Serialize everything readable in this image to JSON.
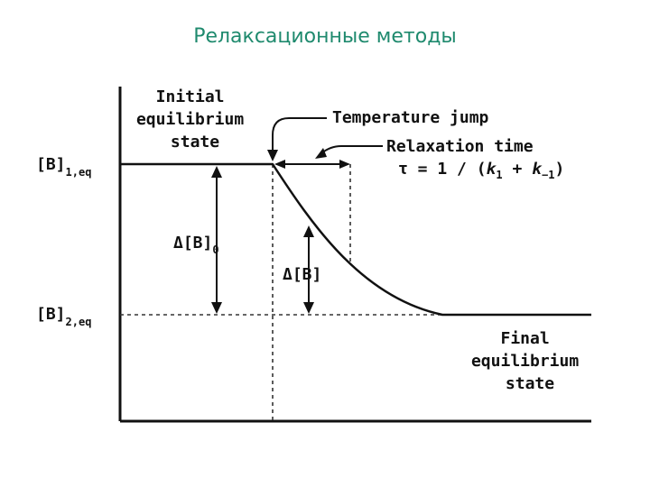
{
  "slide": {
    "title": "Релаксационные методы",
    "title_color": "#1f8a6e"
  },
  "diagram": {
    "initial_state": [
      "Initial",
      "equilibrium",
      "state"
    ],
    "final_state": [
      "Final",
      "equilibrium",
      "state"
    ],
    "temperature_jump": "Temperature jump",
    "relaxation_time": "Relaxation time",
    "tau_formula": {
      "prefix": "τ = 1 / (",
      "k1": "k",
      "k1_sub": "1",
      "plus": " + ",
      "km1": "k",
      "km1_sub": "−1",
      "suffix": ")"
    },
    "b1_eq": {
      "main": "[B]",
      "sub": "1,eq"
    },
    "b2_eq": {
      "main": "[B]",
      "sub": "2,eq"
    },
    "delta_b0": {
      "main": "Δ[B]",
      "sub": "0"
    },
    "delta_b": "Δ[B]"
  }
}
